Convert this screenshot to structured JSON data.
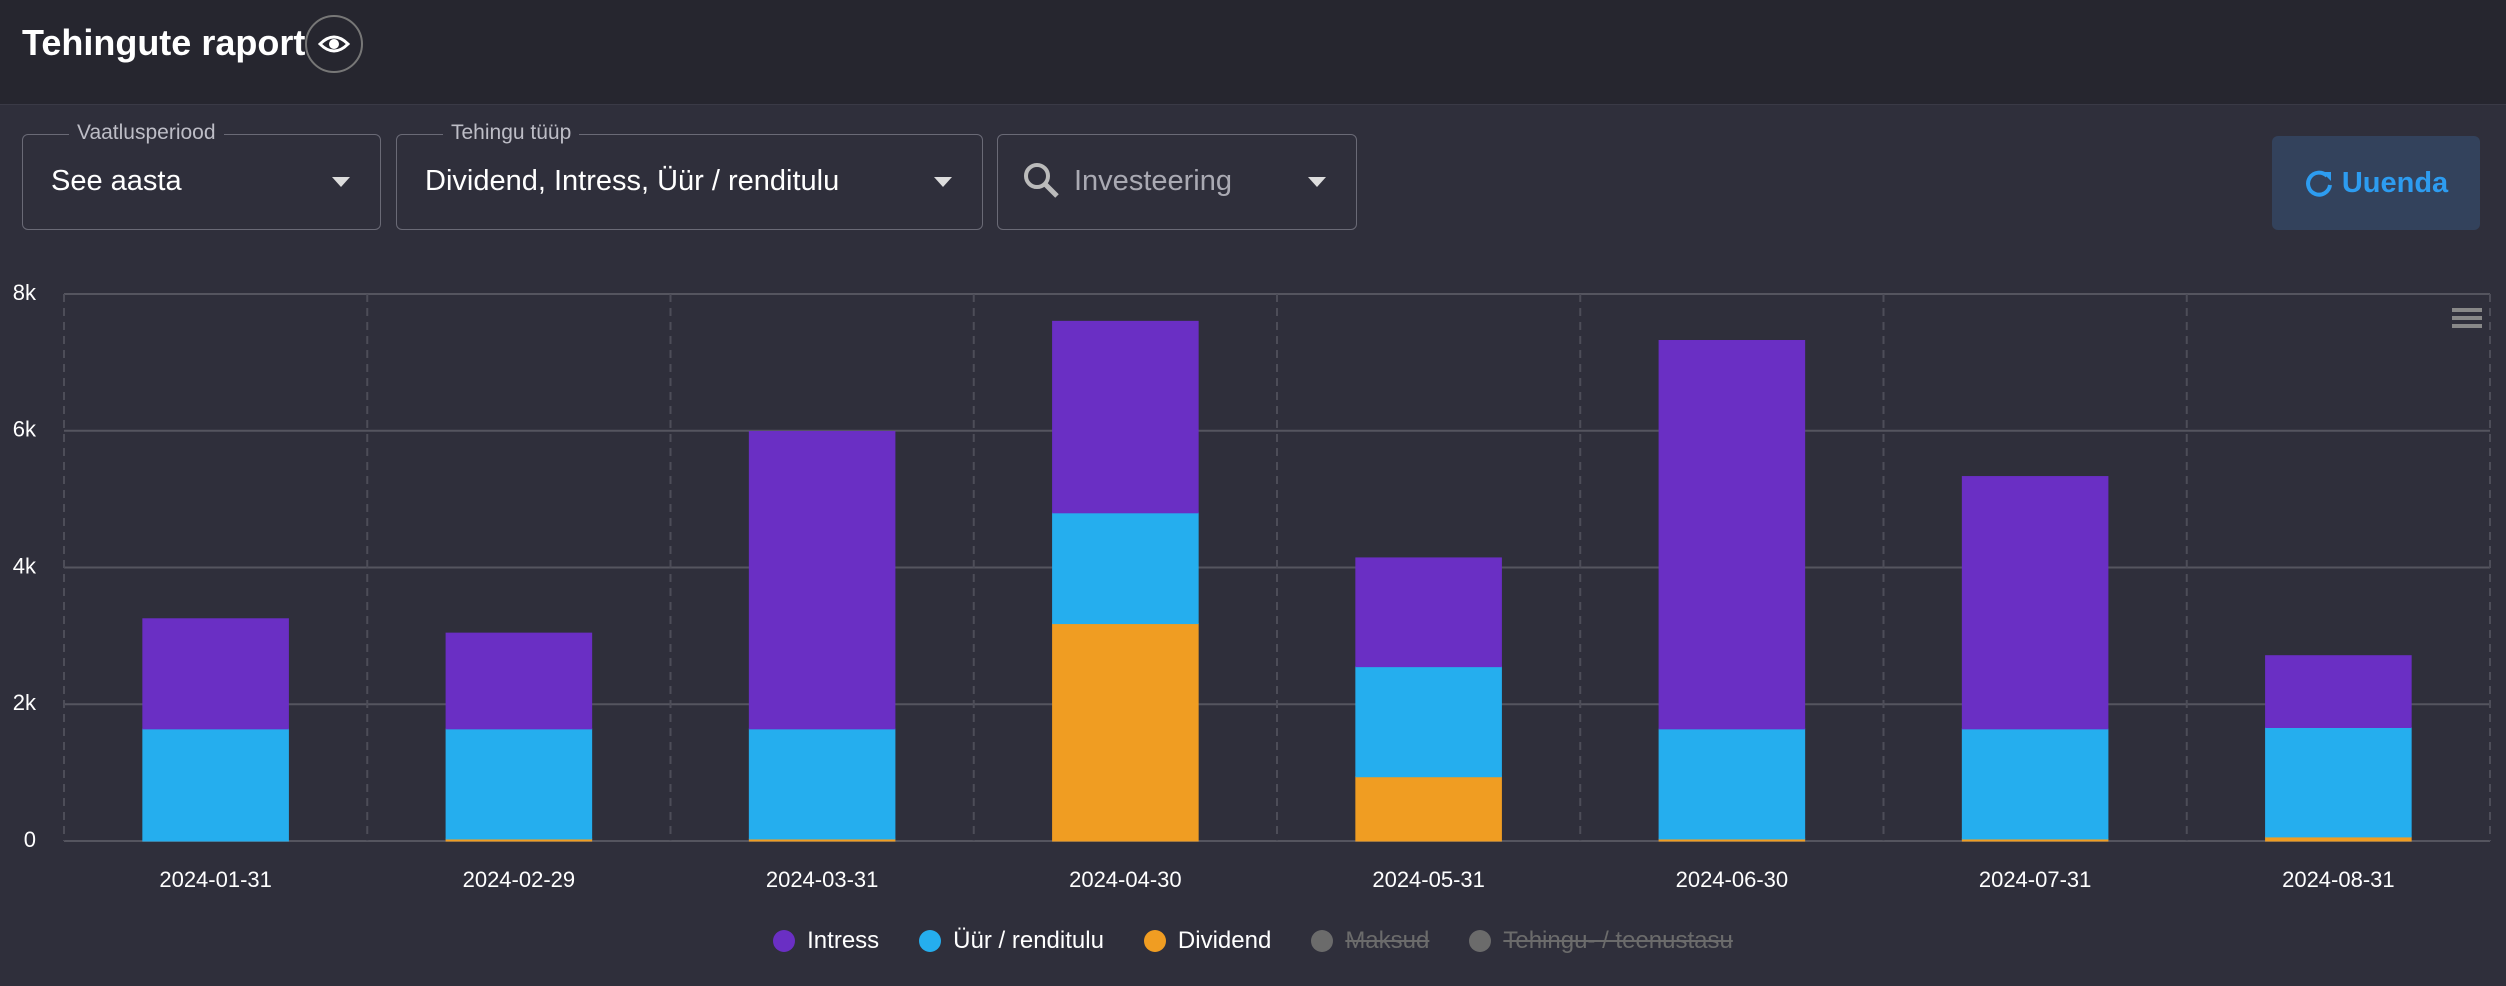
{
  "header": {
    "title": "Tehingute raport"
  },
  "filters": [
    {
      "label": "Vaatlusperiood",
      "value": "See aasta"
    },
    {
      "label": "Tehingu tüüp",
      "value": "Dividend, Intress, Üür / renditulu"
    },
    {
      "placeholder": "Investeering"
    }
  ],
  "button": {
    "label": "Uuenda"
  },
  "chart_data": {
    "type": "stacked_bar",
    "categories": [
      "2024-01-31",
      "2024-02-29",
      "2024-03-31",
      "2024-04-30",
      "2024-05-31",
      "2024-06-30",
      "2024-07-31",
      "2024-08-31"
    ],
    "series": [
      {
        "name": "Intress",
        "color": "#6a2fc4",
        "values": [
          1610,
          1400,
          4350,
          2800,
          1590,
          5680,
          3690,
          1050
        ]
      },
      {
        "name": "Üür / renditulu",
        "color": "#25aeee",
        "values": [
          1640,
          1610,
          1610,
          1620,
          1610,
          1610,
          1610,
          1600
        ]
      },
      {
        "name": "Dividend",
        "color": "#f09d22",
        "values": [
          0,
          30,
          30,
          3180,
          940,
          30,
          30,
          60
        ]
      }
    ],
    "hidden_series": [
      {
        "name": "Maksud",
        "color": "#6b6b6b"
      },
      {
        "name": "Tehingu- / teenustasu",
        "color": "#6b6b6b"
      }
    ],
    "ylim": [
      0,
      8000
    ],
    "yticks": [
      0,
      {
        "value": 2000,
        "label": "2k"
      },
      {
        "value": 4000,
        "label": "4k"
      },
      {
        "value": 6000,
        "label": "6k"
      },
      {
        "value": 8000,
        "label": "8k"
      }
    ],
    "grid": true
  }
}
